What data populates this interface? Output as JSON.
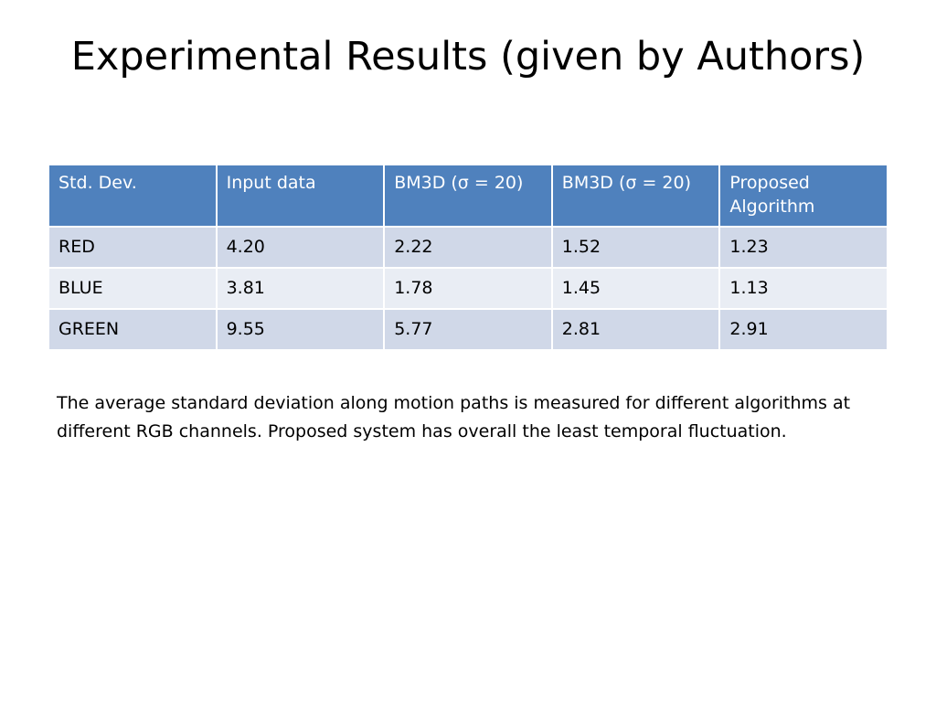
{
  "slide": {
    "title": "Experimental Results (given by Authors)",
    "caption": "The average standard deviation along motion paths is measured for different algorithms at different RGB channels. Proposed system has overall the least temporal fluctuation."
  },
  "table": {
    "headers": [
      "Std. Dev.",
      "Input data",
      "BM3D (σ = 20)",
      "BM3D (σ = 20)",
      "Proposed Algorithm"
    ],
    "rows": [
      [
        "RED",
        "4.20",
        "2.22",
        "1.52",
        "1.23"
      ],
      [
        "BLUE",
        "3.81",
        "1.78",
        "1.45",
        "1.13"
      ],
      [
        "GREEN",
        "9.55",
        "5.77",
        "2.81",
        "2.91"
      ]
    ]
  },
  "colors": {
    "header_bg": "#4f81bd",
    "row_odd_bg": "#d0d8e8",
    "row_even_bg": "#e9edf4"
  }
}
